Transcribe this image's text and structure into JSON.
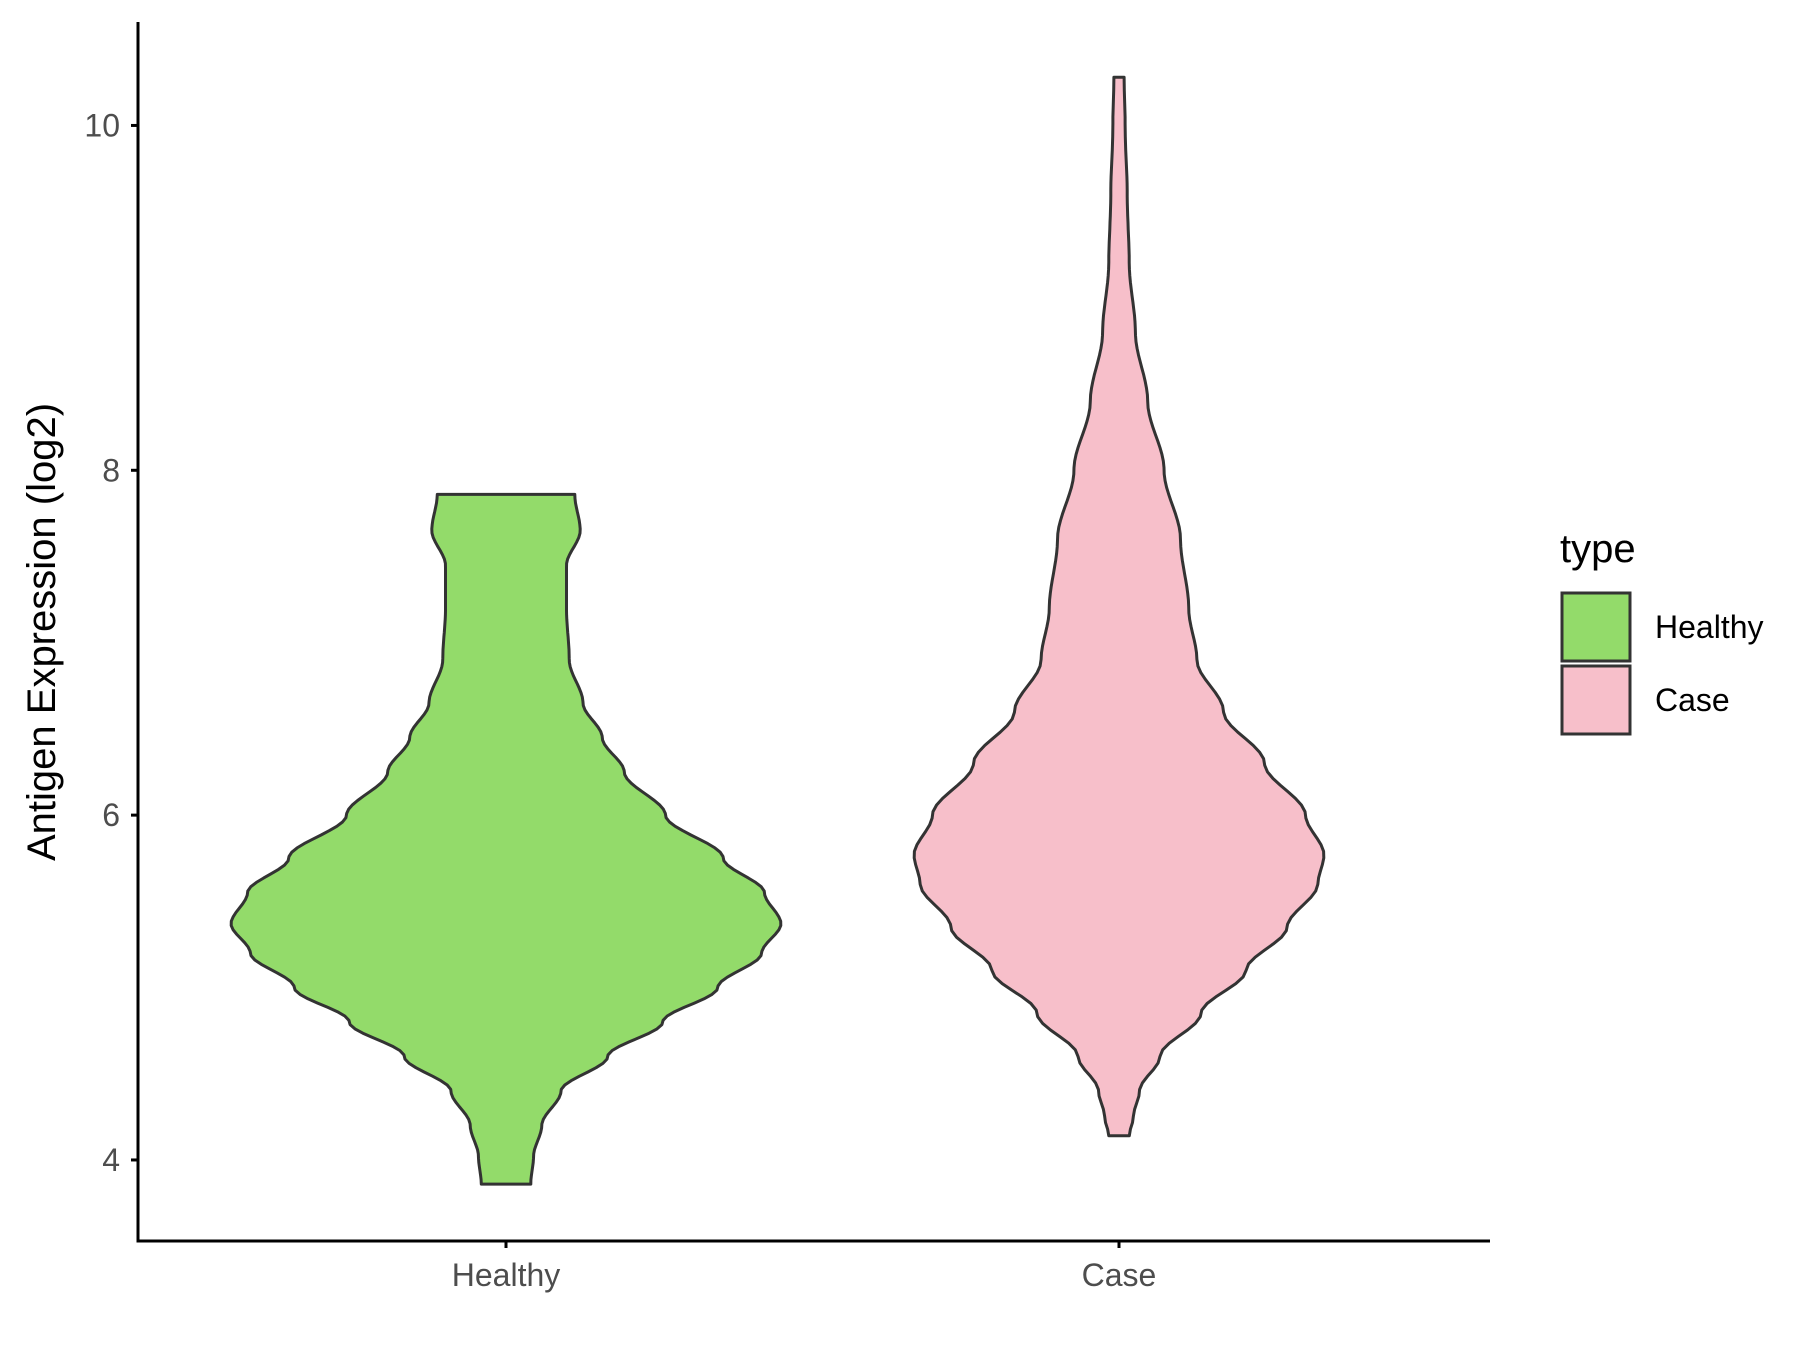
{
  "chart_data": {
    "type": "violin",
    "title": "",
    "xlabel": "",
    "ylabel": "Antigen Expression (log2)",
    "ylim": [
      3.53,
      10.6
    ],
    "yticks": [
      4,
      6,
      8,
      10
    ],
    "ytick_labels": [
      "4",
      "6",
      "8",
      "10"
    ],
    "categories": [
      "Healthy",
      "Case"
    ],
    "grid": false,
    "legend": {
      "title": "type",
      "position": "right",
      "entries": [
        "Healthy",
        "Case"
      ]
    },
    "colors": {
      "Healthy": "#93db6a",
      "Case": "#f7bfca",
      "outline": "#333333",
      "axis": "#000000"
    },
    "series": [
      {
        "name": "Healthy",
        "min": 3.86,
        "max": 7.86,
        "peak_density_at": 5.37,
        "profile": [
          [
            3.86,
            0.09
          ],
          [
            4.02,
            0.1
          ],
          [
            4.2,
            0.13
          ],
          [
            4.4,
            0.2
          ],
          [
            4.6,
            0.37
          ],
          [
            4.8,
            0.57
          ],
          [
            5.0,
            0.77
          ],
          [
            5.2,
            0.93
          ],
          [
            5.37,
            1.0
          ],
          [
            5.55,
            0.94
          ],
          [
            5.75,
            0.79
          ],
          [
            6.0,
            0.58
          ],
          [
            6.25,
            0.43
          ],
          [
            6.45,
            0.35
          ],
          [
            6.65,
            0.28
          ],
          [
            6.9,
            0.23
          ],
          [
            7.2,
            0.22
          ],
          [
            7.45,
            0.22
          ],
          [
            7.65,
            0.27
          ],
          [
            7.86,
            0.25
          ]
        ]
      },
      {
        "name": "Case",
        "min": 4.14,
        "max": 10.28,
        "peak_density_at": 5.77,
        "profile": [
          [
            4.14,
            0.05
          ],
          [
            4.25,
            0.07
          ],
          [
            4.4,
            0.1
          ],
          [
            4.6,
            0.2
          ],
          [
            4.85,
            0.4
          ],
          [
            5.1,
            0.62
          ],
          [
            5.35,
            0.82
          ],
          [
            5.6,
            0.97
          ],
          [
            5.77,
            1.0
          ],
          [
            6.0,
            0.91
          ],
          [
            6.3,
            0.71
          ],
          [
            6.6,
            0.51
          ],
          [
            6.9,
            0.38
          ],
          [
            7.2,
            0.34
          ],
          [
            7.6,
            0.3
          ],
          [
            8.0,
            0.22
          ],
          [
            8.4,
            0.14
          ],
          [
            8.8,
            0.08
          ],
          [
            9.2,
            0.05
          ],
          [
            9.6,
            0.04
          ],
          [
            10.0,
            0.03
          ],
          [
            10.28,
            0.025
          ]
        ]
      }
    ]
  }
}
